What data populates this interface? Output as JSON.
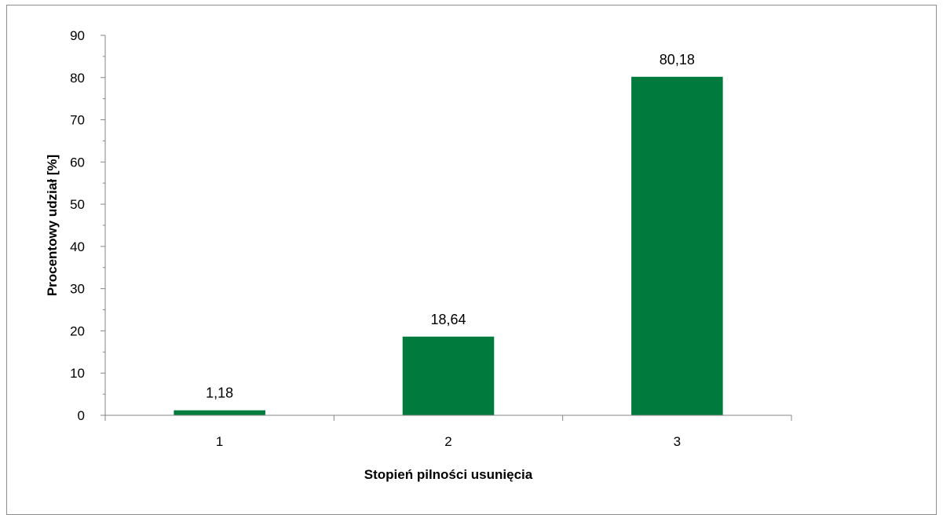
{
  "chart_data": {
    "type": "bar",
    "categories": [
      "1",
      "2",
      "3"
    ],
    "values": [
      1.18,
      18.64,
      80.18
    ],
    "value_labels": [
      "1,18",
      "18,64",
      "80,18"
    ],
    "title": "",
    "xlabel": "Stopień pilności usunięcia",
    "ylabel": "Procentowy udział [%]",
    "ylim": [
      0,
      90
    ],
    "yticks": [
      0,
      10,
      20,
      30,
      40,
      50,
      60,
      70,
      80,
      90
    ],
    "grid": false,
    "legend": "none",
    "bar_color": "#007A3D",
    "axis_color": "#868686"
  }
}
